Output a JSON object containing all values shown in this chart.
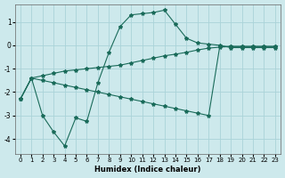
{
  "xlabel": "Humidex (Indice chaleur)",
  "bg_color": "#cde9ec",
  "grid_color": "#aad3d8",
  "line_color": "#1a6b5a",
  "xlim": [
    -0.5,
    23.5
  ],
  "ylim": [
    -4.65,
    1.75
  ],
  "yticks": [
    -4,
    -3,
    -2,
    -1,
    0,
    1
  ],
  "xticks": [
    0,
    1,
    2,
    3,
    4,
    5,
    6,
    7,
    8,
    9,
    10,
    11,
    12,
    13,
    14,
    15,
    16,
    17,
    18,
    19,
    20,
    21,
    22,
    23
  ],
  "line1_x": [
    0,
    1,
    2,
    3,
    4,
    5,
    6,
    7,
    8,
    9,
    10,
    11,
    12,
    13,
    14,
    15,
    16,
    17,
    18,
    19,
    20,
    21,
    22,
    23
  ],
  "line1_y": [
    -2.3,
    -1.4,
    -3.0,
    -3.7,
    -4.3,
    -3.1,
    -3.25,
    -1.6,
    -0.3,
    0.8,
    1.3,
    1.35,
    1.4,
    1.5,
    0.9,
    0.3,
    0.1,
    0.05,
    0.0,
    -0.1,
    -0.1,
    -0.1,
    -0.1,
    -0.1
  ],
  "line2_x": [
    0,
    1,
    2,
    3,
    4,
    5,
    6,
    7,
    8,
    9,
    10,
    11,
    12,
    13,
    14,
    15,
    16,
    17,
    18,
    19,
    20,
    21,
    22,
    23
  ],
  "line2_y": [
    -2.3,
    -1.4,
    -1.3,
    -1.2,
    -1.1,
    -1.05,
    -1.0,
    -0.95,
    -0.9,
    -0.85,
    -0.75,
    -0.65,
    -0.55,
    -0.45,
    -0.38,
    -0.3,
    -0.2,
    -0.12,
    -0.08,
    -0.05,
    -0.05,
    -0.05,
    -0.05,
    -0.05
  ],
  "line3_x": [
    0,
    1,
    2,
    3,
    4,
    5,
    6,
    7,
    8,
    9,
    10,
    11,
    12,
    13,
    14,
    15,
    16,
    17,
    18,
    19,
    20,
    21,
    22,
    23
  ],
  "line3_y": [
    -2.3,
    -1.4,
    -1.5,
    -1.6,
    -1.7,
    -1.8,
    -1.9,
    -2.0,
    -2.1,
    -2.2,
    -2.3,
    -2.4,
    -2.5,
    -2.6,
    -2.7,
    -2.8,
    -2.9,
    -3.0,
    -0.05,
    -0.05,
    -0.05,
    -0.05,
    -0.05,
    -0.05
  ]
}
